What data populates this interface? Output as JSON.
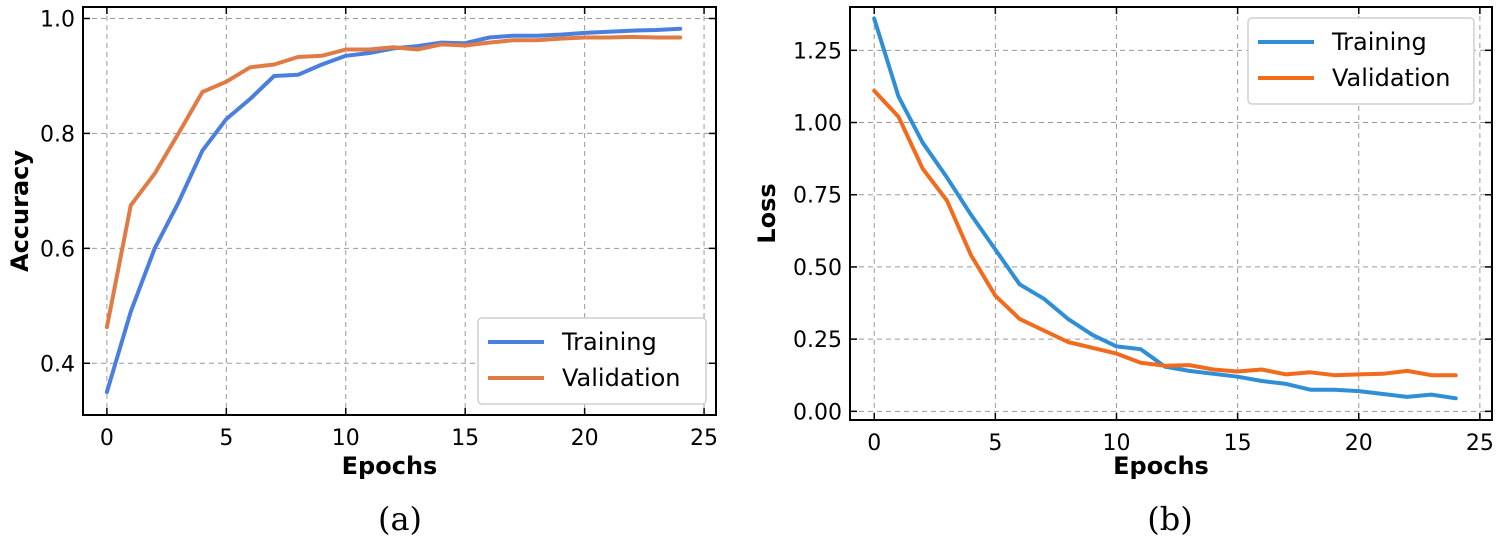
{
  "chart_data": [
    {
      "type": "line",
      "caption": "(a)",
      "xlabel": "Epochs",
      "ylabel": "Accuracy",
      "xlim": [
        -1,
        25.5
      ],
      "ylim": [
        0.31,
        1.02
      ],
      "xticks": [
        "0",
        "5",
        "10",
        "15",
        "20",
        "25"
      ],
      "yticks": [
        "0.4",
        "0.6",
        "0.8",
        "1.0"
      ],
      "grid": true,
      "legend_position": "lower-right",
      "x": [
        0,
        1,
        2,
        3,
        4,
        5,
        6,
        7,
        8,
        9,
        10,
        11,
        12,
        13,
        14,
        15,
        16,
        17,
        18,
        19,
        20,
        21,
        22,
        23,
        24
      ],
      "series": [
        {
          "name": "Training",
          "color": "#4a7fe0",
          "values": [
            0.35,
            0.49,
            0.6,
            0.68,
            0.77,
            0.825,
            0.86,
            0.9,
            0.902,
            0.92,
            0.935,
            0.94,
            0.948,
            0.952,
            0.958,
            0.957,
            0.967,
            0.97,
            0.97,
            0.972,
            0.975,
            0.977,
            0.979,
            0.98,
            0.982
          ]
        },
        {
          "name": "Validation",
          "color": "#e07b45",
          "values": [
            0.463,
            0.675,
            0.73,
            0.8,
            0.872,
            0.89,
            0.915,
            0.92,
            0.933,
            0.935,
            0.946,
            0.946,
            0.95,
            0.946,
            0.955,
            0.953,
            0.958,
            0.962,
            0.962,
            0.965,
            0.967,
            0.967,
            0.968,
            0.967,
            0.967
          ]
        }
      ]
    },
    {
      "type": "line",
      "caption": "(b)",
      "xlabel": "Epochs",
      "ylabel": "Loss",
      "xlim": [
        -1,
        25.5
      ],
      "ylim": [
        -0.03,
        1.4
      ],
      "xticks": [
        "0",
        "5",
        "10",
        "15",
        "20",
        "25"
      ],
      "yticks": [
        "0.00",
        "0.25",
        "0.50",
        "0.75",
        "1.00",
        "1.25"
      ],
      "grid": true,
      "legend_position": "upper-right",
      "x": [
        0,
        1,
        2,
        3,
        4,
        5,
        6,
        7,
        8,
        9,
        10,
        11,
        12,
        13,
        14,
        15,
        16,
        17,
        18,
        19,
        20,
        21,
        22,
        23,
        24
      ],
      "series": [
        {
          "name": "Training",
          "color": "#2f8fd6",
          "values": [
            1.36,
            1.09,
            0.93,
            0.81,
            0.68,
            0.56,
            0.44,
            0.39,
            0.32,
            0.265,
            0.225,
            0.215,
            0.155,
            0.14,
            0.13,
            0.12,
            0.105,
            0.095,
            0.075,
            0.075,
            0.07,
            0.06,
            0.05,
            0.058,
            0.045
          ]
        },
        {
          "name": "Validation",
          "color": "#f26b1d",
          "values": [
            1.11,
            1.02,
            0.84,
            0.73,
            0.54,
            0.4,
            0.32,
            0.28,
            0.24,
            0.22,
            0.2,
            0.168,
            0.158,
            0.16,
            0.145,
            0.138,
            0.145,
            0.128,
            0.135,
            0.125,
            0.128,
            0.13,
            0.14,
            0.125,
            0.125
          ]
        }
      ]
    }
  ]
}
